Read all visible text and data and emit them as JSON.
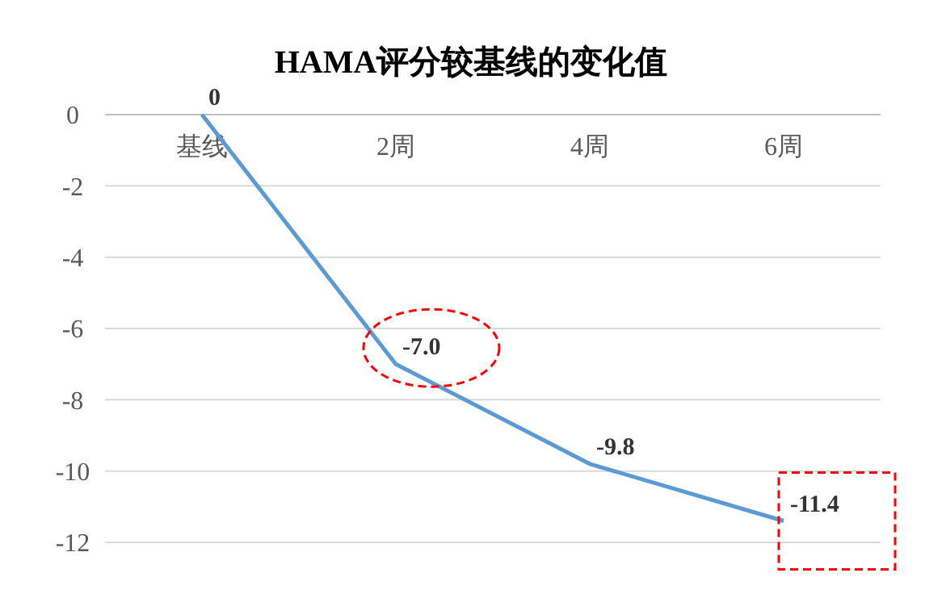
{
  "chart_data": {
    "type": "line",
    "title": "HAMA评分较基线的变化值",
    "categories": [
      "基线",
      "2周",
      "4周",
      "6周"
    ],
    "series": [
      {
        "color": "#5b9bd5",
        "values": [
          0,
          -7.0,
          -9.8,
          -11.4
        ],
        "value_labels": [
          "0",
          "-7.0",
          "-9.8",
          "-11.4"
        ]
      }
    ],
    "ylim": [
      -12,
      0
    ],
    "yticks": [
      0,
      -2,
      -4,
      -6,
      -8,
      -10,
      -12
    ],
    "grid": "y",
    "marker": "none",
    "line_style": "solid"
  }
}
